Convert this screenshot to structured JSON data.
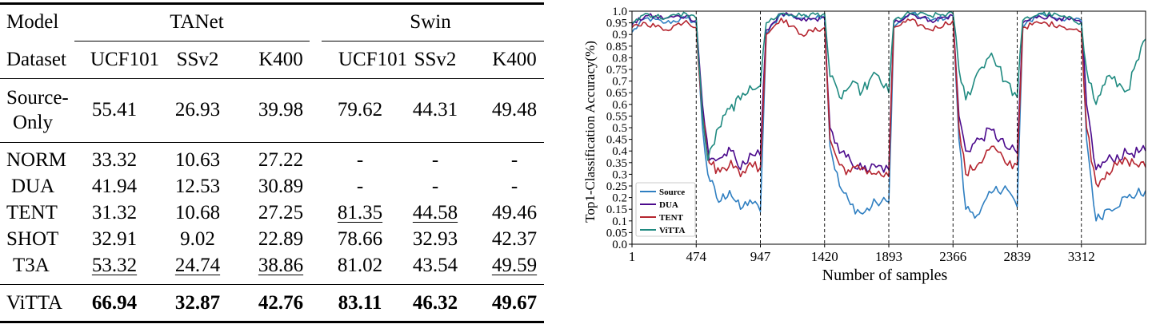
{
  "table": {
    "col_model": "Model",
    "col_dataset": "Dataset",
    "group_tanet": "TANet",
    "group_swin": "Swin",
    "datasets": [
      "UCF101",
      "SSv2",
      "K400",
      "UCF101",
      "SSv2",
      "K400"
    ],
    "source_only": {
      "label_line1": "Source-",
      "label_line2": "Only",
      "values": [
        "55.41",
        "26.93",
        "39.98",
        "79.62",
        "44.31",
        "49.48"
      ]
    },
    "rows": [
      {
        "name": "NORM",
        "values": [
          "33.32",
          "10.63",
          "27.22",
          "-",
          "-",
          "-"
        ]
      },
      {
        "name": "DUA",
        "values": [
          "41.94",
          "12.53",
          "30.89",
          "-",
          "-",
          "-"
        ]
      },
      {
        "name": "TENT",
        "values": [
          "31.32",
          "10.68",
          "27.25",
          "81.35",
          "44.58",
          "49.46"
        ]
      },
      {
        "name": "SHOT",
        "values": [
          "32.91",
          "9.02",
          "22.89",
          "78.66",
          "32.93",
          "42.37"
        ]
      },
      {
        "name": "T3A",
        "values": [
          "53.32",
          "24.74",
          "38.86",
          "81.02",
          "43.54",
          "49.59"
        ]
      }
    ],
    "vitta": {
      "name": "ViTTA",
      "values": [
        "66.94",
        "32.87",
        "42.76",
        "83.11",
        "46.32",
        "49.67"
      ]
    }
  },
  "chart_data": {
    "type": "line",
    "title": "",
    "xlabel": "Number of samples",
    "ylabel": "Top1-Classification Accuracy(%)",
    "xlim": [
      1,
      3785
    ],
    "ylim": [
      0.0,
      1.0
    ],
    "xticks": [
      1,
      474,
      947,
      1420,
      1893,
      2366,
      2839,
      3312
    ],
    "xtick_labels": [
      "1",
      "474",
      "947",
      "1420",
      "1893",
      "2366",
      "2839",
      "3312"
    ],
    "yticks": [
      0.0,
      0.05,
      0.1,
      0.15,
      0.2,
      0.25,
      0.3,
      0.35,
      0.4,
      0.45,
      0.5,
      0.55,
      0.6,
      0.65,
      0.7,
      0.75,
      0.8,
      0.85,
      0.9,
      0.95,
      1.0
    ],
    "ytick_labels": [
      "0.0",
      "0.05",
      "0.1",
      "0.15",
      "0.2",
      "0.25",
      "0.3",
      "0.35",
      "0.4",
      "0.45",
      "0.5",
      "0.55",
      "0.6",
      "0.65",
      "0.7",
      "0.75",
      "0.8",
      "0.85",
      "0.9",
      "0.95",
      "1.0"
    ],
    "domain_boundaries": [
      474,
      947,
      1420,
      1893,
      2366,
      2839,
      3312
    ],
    "legend_position": "lower-left",
    "series": [
      {
        "name": "Source",
        "color": "#2f7fc1",
        "points": [
          [
            1,
            0.91
          ],
          [
            100,
            0.97
          ],
          [
            250,
            0.95
          ],
          [
            400,
            0.97
          ],
          [
            474,
            0.95
          ],
          [
            520,
            0.5
          ],
          [
            560,
            0.3
          ],
          [
            640,
            0.18
          ],
          [
            720,
            0.23
          ],
          [
            800,
            0.15
          ],
          [
            870,
            0.19
          ],
          [
            947,
            0.14
          ],
          [
            990,
            0.9
          ],
          [
            1100,
            0.99
          ],
          [
            1250,
            0.97
          ],
          [
            1420,
            0.98
          ],
          [
            1460,
            0.42
          ],
          [
            1530,
            0.25
          ],
          [
            1610,
            0.17
          ],
          [
            1700,
            0.13
          ],
          [
            1800,
            0.18
          ],
          [
            1893,
            0.18
          ],
          [
            1930,
            0.93
          ],
          [
            2050,
            0.99
          ],
          [
            2200,
            0.96
          ],
          [
            2366,
            0.98
          ],
          [
            2410,
            0.45
          ],
          [
            2460,
            0.15
          ],
          [
            2560,
            0.13
          ],
          [
            2650,
            0.22
          ],
          [
            2750,
            0.25
          ],
          [
            2839,
            0.16
          ],
          [
            2880,
            0.93
          ],
          [
            3000,
            0.99
          ],
          [
            3150,
            0.97
          ],
          [
            3312,
            0.96
          ],
          [
            3350,
            0.45
          ],
          [
            3420,
            0.1
          ],
          [
            3500,
            0.15
          ],
          [
            3650,
            0.2
          ],
          [
            3785,
            0.23
          ]
        ]
      },
      {
        "name": "DUA",
        "color": "#4b0a8c",
        "points": [
          [
            1,
            0.94
          ],
          [
            100,
            0.98
          ],
          [
            250,
            0.97
          ],
          [
            400,
            0.98
          ],
          [
            474,
            0.96
          ],
          [
            520,
            0.6
          ],
          [
            570,
            0.36
          ],
          [
            650,
            0.37
          ],
          [
            730,
            0.4
          ],
          [
            800,
            0.32
          ],
          [
            870,
            0.39
          ],
          [
            947,
            0.38
          ],
          [
            990,
            0.92
          ],
          [
            1100,
            0.99
          ],
          [
            1250,
            0.96
          ],
          [
            1420,
            0.97
          ],
          [
            1460,
            0.5
          ],
          [
            1530,
            0.39
          ],
          [
            1610,
            0.36
          ],
          [
            1700,
            0.32
          ],
          [
            1800,
            0.33
          ],
          [
            1893,
            0.32
          ],
          [
            1930,
            0.95
          ],
          [
            2050,
            0.99
          ],
          [
            2200,
            0.96
          ],
          [
            2366,
            0.98
          ],
          [
            2410,
            0.55
          ],
          [
            2460,
            0.4
          ],
          [
            2560,
            0.45
          ],
          [
            2650,
            0.49
          ],
          [
            2750,
            0.42
          ],
          [
            2839,
            0.39
          ],
          [
            2880,
            0.95
          ],
          [
            3000,
            0.98
          ],
          [
            3150,
            0.97
          ],
          [
            3312,
            0.95
          ],
          [
            3350,
            0.6
          ],
          [
            3420,
            0.32
          ],
          [
            3500,
            0.36
          ],
          [
            3650,
            0.39
          ],
          [
            3785,
            0.4
          ]
        ]
      },
      {
        "name": "TENT",
        "color": "#b5252f",
        "points": [
          [
            1,
            0.93
          ],
          [
            100,
            0.95
          ],
          [
            250,
            0.92
          ],
          [
            400,
            0.96
          ],
          [
            474,
            0.93
          ],
          [
            520,
            0.55
          ],
          [
            570,
            0.35
          ],
          [
            650,
            0.31
          ],
          [
            730,
            0.36
          ],
          [
            800,
            0.29
          ],
          [
            870,
            0.35
          ],
          [
            947,
            0.33
          ],
          [
            990,
            0.9
          ],
          [
            1100,
            0.97
          ],
          [
            1250,
            0.9
          ],
          [
            1420,
            0.93
          ],
          [
            1460,
            0.45
          ],
          [
            1530,
            0.34
          ],
          [
            1610,
            0.31
          ],
          [
            1700,
            0.33
          ],
          [
            1800,
            0.3
          ],
          [
            1893,
            0.29
          ],
          [
            1930,
            0.93
          ],
          [
            2050,
            0.96
          ],
          [
            2200,
            0.92
          ],
          [
            2366,
            0.96
          ],
          [
            2410,
            0.5
          ],
          [
            2460,
            0.3
          ],
          [
            2560,
            0.35
          ],
          [
            2650,
            0.42
          ],
          [
            2750,
            0.35
          ],
          [
            2839,
            0.34
          ],
          [
            2880,
            0.93
          ],
          [
            3000,
            0.95
          ],
          [
            3150,
            0.94
          ],
          [
            3312,
            0.91
          ],
          [
            3350,
            0.5
          ],
          [
            3420,
            0.26
          ],
          [
            3500,
            0.31
          ],
          [
            3650,
            0.36
          ],
          [
            3785,
            0.33
          ]
        ]
      },
      {
        "name": "ViTTA",
        "color": "#1f8a80",
        "points": [
          [
            1,
            0.95
          ],
          [
            100,
            0.99
          ],
          [
            250,
            0.97
          ],
          [
            400,
            0.99
          ],
          [
            474,
            0.97
          ],
          [
            520,
            0.55
          ],
          [
            560,
            0.36
          ],
          [
            640,
            0.5
          ],
          [
            720,
            0.58
          ],
          [
            800,
            0.62
          ],
          [
            870,
            0.68
          ],
          [
            947,
            0.68
          ],
          [
            990,
            0.95
          ],
          [
            1100,
            0.99
          ],
          [
            1250,
            0.98
          ],
          [
            1420,
            0.99
          ],
          [
            1460,
            0.72
          ],
          [
            1530,
            0.63
          ],
          [
            1610,
            0.68
          ],
          [
            1700,
            0.66
          ],
          [
            1800,
            0.73
          ],
          [
            1893,
            0.65
          ],
          [
            1930,
            0.96
          ],
          [
            2050,
            0.99
          ],
          [
            2200,
            0.98
          ],
          [
            2366,
            0.99
          ],
          [
            2410,
            0.75
          ],
          [
            2460,
            0.62
          ],
          [
            2560,
            0.75
          ],
          [
            2650,
            0.82
          ],
          [
            2750,
            0.7
          ],
          [
            2839,
            0.63
          ],
          [
            2880,
            0.96
          ],
          [
            3000,
            0.99
          ],
          [
            3150,
            0.98
          ],
          [
            3312,
            0.95
          ],
          [
            3350,
            0.75
          ],
          [
            3420,
            0.6
          ],
          [
            3500,
            0.72
          ],
          [
            3650,
            0.66
          ],
          [
            3785,
            0.88
          ]
        ]
      }
    ]
  }
}
